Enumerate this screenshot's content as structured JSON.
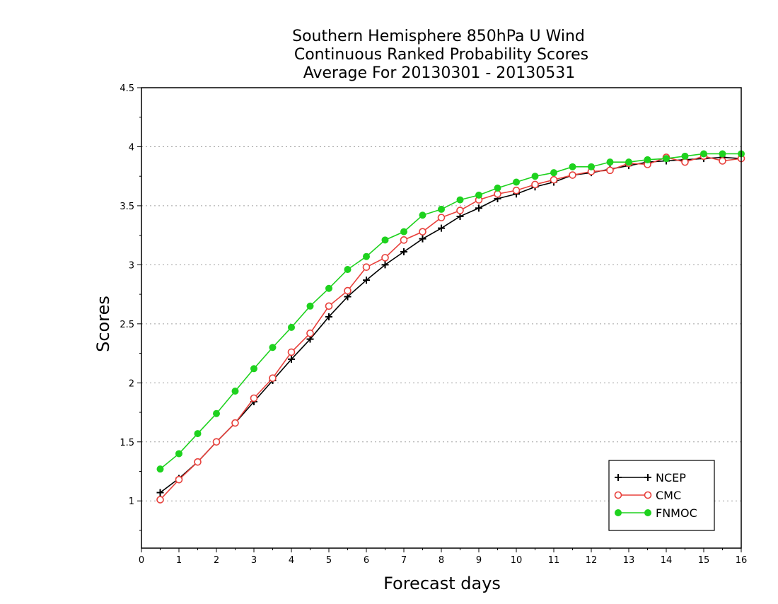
{
  "chart_data": {
    "type": "line",
    "title": [
      "Southern Hemisphere 850hPa U Wind",
      "Continuous Ranked Probability Scores",
      "Average For 20130301 - 20130531"
    ],
    "xlabel": "Forecast days",
    "ylabel": "Scores",
    "xlim": [
      0,
      16
    ],
    "ylim": [
      0.6,
      4.5
    ],
    "xticks": [
      0,
      1,
      2,
      3,
      4,
      5,
      6,
      7,
      8,
      9,
      10,
      11,
      12,
      13,
      14,
      15,
      16
    ],
    "xtick_labels": [
      "0",
      "1",
      "2",
      "3",
      "4",
      "5",
      "6",
      "7",
      "8",
      "9",
      "10",
      "11",
      "12",
      "13",
      "14",
      "15",
      "16"
    ],
    "yticks": [
      1,
      1.5,
      2,
      2.5,
      3,
      3.5,
      4,
      4.5
    ],
    "ytick_labels": [
      "1",
      "1.5",
      "2",
      "2.5",
      "3",
      "3.5",
      "4",
      "4.5"
    ],
    "grid": "horizontal dotted",
    "legend_position": "bottom-right",
    "x": [
      0.5,
      1,
      1.5,
      2,
      2.5,
      3,
      3.5,
      4,
      4.5,
      5,
      5.5,
      6,
      6.5,
      7,
      7.5,
      8,
      8.5,
      9,
      9.5,
      10,
      10.5,
      11,
      11.5,
      12,
      12.5,
      13,
      13.5,
      14,
      14.5,
      15,
      15.5,
      16
    ],
    "series": [
      {
        "name": "NCEP",
        "color": "#000000",
        "marker": "plus",
        "values": [
          1.07,
          1.19,
          1.33,
          1.5,
          1.66,
          1.84,
          2.02,
          2.2,
          2.37,
          2.56,
          2.73,
          2.87,
          3.0,
          3.11,
          3.22,
          3.31,
          3.41,
          3.48,
          3.56,
          3.6,
          3.66,
          3.7,
          3.76,
          3.78,
          3.81,
          3.84,
          3.87,
          3.88,
          3.89,
          3.9,
          3.91,
          3.9
        ]
      },
      {
        "name": "CMC",
        "color": "#e8413c",
        "marker": "open-circle",
        "values": [
          1.01,
          1.18,
          1.33,
          1.5,
          1.66,
          1.87,
          2.04,
          2.26,
          2.42,
          2.65,
          2.78,
          2.98,
          3.06,
          3.21,
          3.28,
          3.4,
          3.46,
          3.55,
          3.6,
          3.63,
          3.68,
          3.72,
          3.76,
          3.79,
          3.8,
          3.86,
          3.85,
          3.91,
          3.87,
          3.92,
          3.88,
          3.9
        ]
      },
      {
        "name": "FNMOC",
        "color": "#1ed21e",
        "marker": "filled-circle",
        "values": [
          1.27,
          1.4,
          1.57,
          1.74,
          1.93,
          2.12,
          2.3,
          2.47,
          2.65,
          2.8,
          2.96,
          3.07,
          3.21,
          3.28,
          3.42,
          3.47,
          3.55,
          3.59,
          3.65,
          3.7,
          3.75,
          3.78,
          3.83,
          3.83,
          3.87,
          3.87,
          3.89,
          3.9,
          3.92,
          3.94,
          3.94,
          3.94
        ]
      }
    ]
  }
}
